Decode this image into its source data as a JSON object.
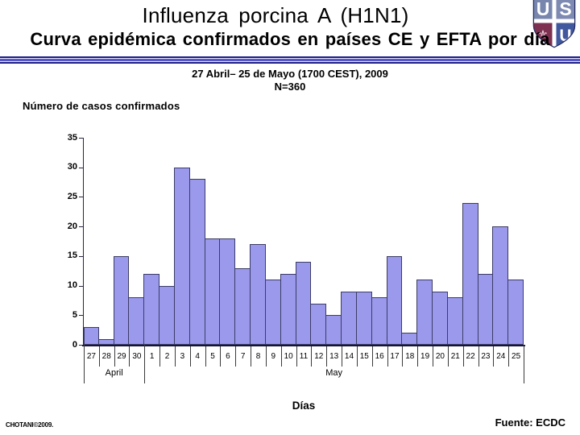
{
  "header": {
    "title": "Influenza porcina A (H1N1)",
    "subtitle": "Curva epidémica confirmados en países CE y EFTA por día",
    "date_range": "27 Abril– 25 de Mayo (1700 CEST), 2009",
    "n_label": "N=360"
  },
  "logo": {
    "letters": [
      "U",
      "S",
      "U"
    ],
    "symbol": "⚜",
    "colors": {
      "border": "#232a60",
      "quadrant_light": "#7886ae",
      "quadrant_blue": "#41589f",
      "quadrant_maroon": "#7e3050"
    }
  },
  "chart_data": {
    "type": "bar",
    "title": "Número de casos confirmados",
    "xlabel": "Días",
    "ylabel": "",
    "ylim": [
      0,
      35
    ],
    "yticks": [
      0,
      5,
      10,
      15,
      20,
      25,
      30,
      35
    ],
    "grid": false,
    "legend_position": "none",
    "categories": [
      "27",
      "28",
      "29",
      "30",
      "1",
      "2",
      "3",
      "4",
      "5",
      "6",
      "7",
      "8",
      "9",
      "10",
      "11",
      "12",
      "13",
      "14",
      "15",
      "16",
      "17",
      "18",
      "19",
      "20",
      "21",
      "22",
      "23",
      "24",
      "25"
    ],
    "values": [
      3,
      1,
      15,
      8,
      12,
      10,
      30,
      28,
      18,
      18,
      13,
      17,
      11,
      12,
      14,
      7,
      5,
      9,
      9,
      8,
      15,
      2,
      11,
      9,
      8,
      24,
      12,
      20,
      11
    ],
    "groups": [
      {
        "label": "April",
        "span": 4
      },
      {
        "label": "May",
        "span": 25
      }
    ],
    "total_n": 360,
    "bar_fill": "#9a99ec",
    "bar_border": "#3c3c66"
  },
  "footer": {
    "left": "CHOTANI©2009.",
    "right": "Fuente: ECDC"
  }
}
